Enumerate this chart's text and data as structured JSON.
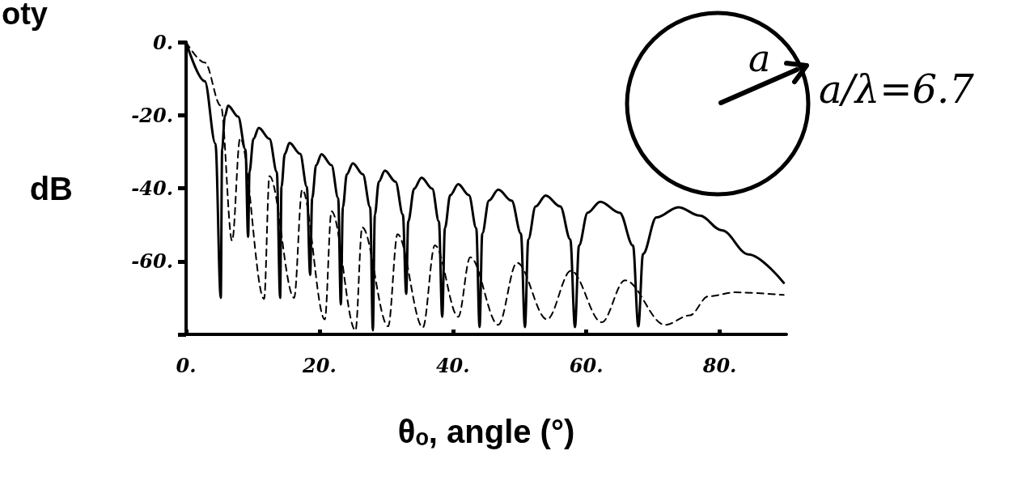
{
  "chart_data": {
    "type": "line",
    "xlabel": "θₒ, angle (°)",
    "ylabel": "dB",
    "annotations": [
      "oty",
      "a",
      "a/λ=6.7"
    ],
    "xlim": [
      0,
      90
    ],
    "xticks": [
      {
        "value": 0,
        "label": "0."
      },
      {
        "value": 20,
        "label": "20."
      },
      {
        "value": 40,
        "label": "40."
      },
      {
        "value": 60,
        "label": "60."
      },
      {
        "value": 80,
        "label": "80."
      }
    ],
    "ylim": [
      -80,
      0
    ],
    "yticks": [
      {
        "value": -80,
        "label": null
      },
      {
        "value": -60,
        "label": "-60."
      },
      {
        "value": -40,
        "label": "-40."
      },
      {
        "value": -20,
        "label": "-20."
      },
      {
        "value": 0,
        "label": "0."
      }
    ],
    "grid": false,
    "marker": "none",
    "series": [
      {
        "color": "#000000",
        "line_style": "solid",
        "x": [
          0,
          2.8,
          4.4,
          5.2,
          5.4,
          5.8,
          6.3,
          7.8,
          8.9,
          9.3,
          9.5,
          10.1,
          10.9,
          12.5,
          13.6,
          14.1,
          14.3,
          14.8,
          15.5,
          17.1,
          18.1,
          18.6,
          18.9,
          19.5,
          20.3,
          21.8,
          22.8,
          23.2,
          23.5,
          24.1,
          25.0,
          26.5,
          27.6,
          28.0,
          28.3,
          28.9,
          29.8,
          31.4,
          32.5,
          33.0,
          33.3,
          34.2,
          35.3,
          36.9,
          37.9,
          38.4,
          38.8,
          39.6,
          40.8,
          42.4,
          43.5,
          44.0,
          44.4,
          45.4,
          46.8,
          48.8,
          50.2,
          50.8,
          51.3,
          52.4,
          53.9,
          56.1,
          57.6,
          58.3,
          58.9,
          60.2,
          62.1,
          65.0,
          67.0,
          67.8,
          68.5,
          70.5,
          73.8,
          77.0,
          80.3,
          84.3,
          89.6
        ],
        "values": [
          0,
          -10.7,
          -27.8,
          -70,
          -29.4,
          -20.4,
          -17.4,
          -20.4,
          -29.4,
          -53.3,
          -35.5,
          -26.5,
          -23.5,
          -26.5,
          -35.5,
          -70,
          -39.6,
          -30.6,
          -27.6,
          -30.6,
          -39.6,
          -63.7,
          -42.7,
          -33.7,
          -30.7,
          -33.7,
          -42.7,
          -71.8,
          -45.2,
          -36.2,
          -33.2,
          -36.2,
          -45.2,
          -78.9,
          -47.2,
          -38.2,
          -35.2,
          -38.2,
          -47.2,
          -68.9,
          -49.1,
          -40.1,
          -37.1,
          -40.1,
          -49.1,
          -75.2,
          -50.9,
          -41.9,
          -38.9,
          -41.9,
          -50.9,
          -78,
          -52.4,
          -43.4,
          -40.4,
          -43.4,
          -52.4,
          -78,
          -54,
          -45,
          -42,
          -45,
          -54,
          -78,
          -55.7,
          -46.7,
          -43.7,
          -46.7,
          -55.7,
          -77.8,
          -58,
          -48,
          -45.2,
          -47.5,
          -51.5,
          -58.1,
          -65.9
        ]
      },
      {
        "color": "#000000",
        "line_style": "dashed",
        "x": [
          0,
          2.8,
          5.2,
          6.9,
          8.1,
          11.7,
          12.5,
          16.2,
          17.4,
          20.8,
          21.8,
          25.4,
          26.4,
          30.3,
          31.7,
          35.5,
          37.3,
          40.8,
          42.6,
          46.8,
          49.6,
          54.1,
          57.7,
          62.3,
          65.8,
          71.8,
          75.5,
          78.3,
          82.3,
          89.6
        ],
        "values": [
          0,
          -5.6,
          -17.4,
          -54.4,
          -26.3,
          -70.3,
          -36.7,
          -70,
          -40.4,
          -75.9,
          -46.3,
          -78.9,
          -50.7,
          -77.8,
          -52.6,
          -78.1,
          -55.6,
          -75.2,
          -58.9,
          -77.4,
          -60.4,
          -75.9,
          -62.6,
          -76.7,
          -65.2,
          -77.4,
          -74.8,
          -69.6,
          -68.5,
          -69.2
        ]
      }
    ]
  }
}
